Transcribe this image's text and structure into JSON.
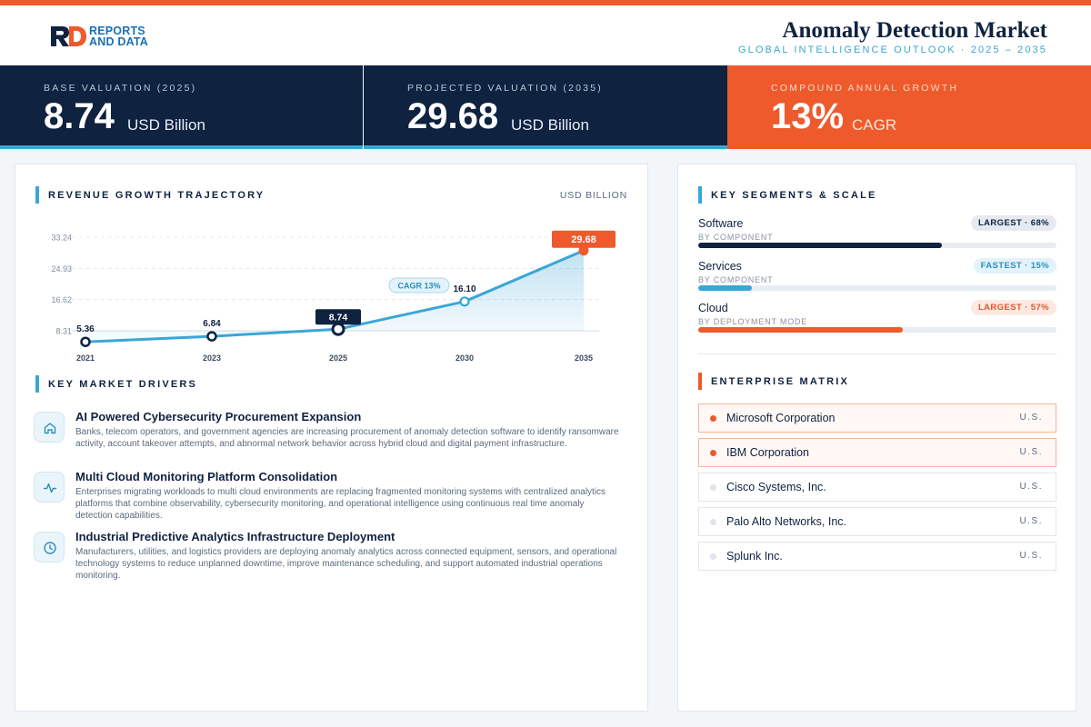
{
  "brand": {
    "logo_line1": "REPORTS",
    "logo_line2": "AND DATA",
    "colors": {
      "navy": "#0f2240",
      "orange": "#ee5a2c",
      "blue": "#3aa6d6"
    }
  },
  "header": {
    "title": "Anomaly Detection Market",
    "subtitle": "GLOBAL INTELLIGENCE OUTLOOK  ·  2025 – 2035"
  },
  "kpis": [
    {
      "label": "BASE VALUATION (2025)",
      "value": "8.74",
      "unit": "USD Billion"
    },
    {
      "label": "PROJECTED VALUATION (2035)",
      "value": "29.68",
      "unit": "USD Billion"
    },
    {
      "label": "COMPOUND ANNUAL GROWTH",
      "value": "13%",
      "unit": "CAGR"
    }
  ],
  "chart_section": {
    "title": "REVENUE GROWTH TRAJECTORY",
    "unit": "USD BILLION"
  },
  "chart_data": {
    "type": "area",
    "categories": [
      "2021",
      "2023",
      "2025",
      "2030",
      "2035"
    ],
    "values": [
      5.36,
      6.84,
      8.74,
      16.1,
      29.68
    ],
    "value_labels": [
      "5.36",
      "6.84",
      "8.74",
      "16.10",
      "29.68"
    ],
    "y_ticks": [
      "33.24",
      "24.93",
      "16.62",
      "8.31"
    ],
    "y_tick_values": [
      33.24,
      24.93,
      16.62,
      8.31
    ],
    "ylim": [
      8.31,
      33.24
    ],
    "annotation": "CAGR 13%",
    "highlight_base": "2025",
    "highlight_end": "2035",
    "grid": true
  },
  "drivers_section": {
    "title": "KEY MARKET DRIVERS"
  },
  "drivers": [
    {
      "icon": "home-icon",
      "title": "AI Powered Cybersecurity Procurement Expansion",
      "desc": "Banks, telecom operators, and government agencies are increasing procurement of anomaly detection software to identify ransomware activity, account takeover attempts, and abnormal network behavior across hybrid cloud and digital payment infrastructure."
    },
    {
      "icon": "pulse-icon",
      "title": "Multi Cloud Monitoring Platform Consolidation",
      "desc": "Enterprises migrating workloads to multi cloud environments are replacing fragmented monitoring systems with centralized analytics platforms that combine observability, cybersecurity monitoring, and operational intelligence using continuous real time anomaly detection capabilities."
    },
    {
      "icon": "clock-icon",
      "title": "Industrial Predictive Analytics Infrastructure Deployment",
      "desc": "Manufacturers, utilities, and logistics providers are deploying anomaly analytics across connected equipment, sensors, and operational technology systems to reduce unplanned downtime, improve maintenance scheduling, and support automated industrial operations monitoring."
    }
  ],
  "segments_section": {
    "title": "KEY SEGMENTS & SCALE"
  },
  "segments": [
    {
      "name": "Software",
      "sub": "BY COMPONENT",
      "badge": "LARGEST · 68%",
      "share": 0.68,
      "color": "#0f2240"
    },
    {
      "name": "Services",
      "sub": "BY COMPONENT",
      "badge": "FASTEST · 15%",
      "share": 0.15,
      "color": "#3aa6d6"
    },
    {
      "name": "Cloud",
      "sub": "BY DEPLOYMENT MODE",
      "badge": "LARGEST · 57%",
      "share": 0.57,
      "color": "#ee5a2c"
    }
  ],
  "enterprise_section": {
    "title": "ENTERPRISE MATRIX"
  },
  "enterprises": [
    {
      "name": "Microsoft Corporation",
      "country": "U.S.",
      "highlight": true
    },
    {
      "name": "IBM Corporation",
      "country": "U.S.",
      "highlight": true
    },
    {
      "name": "Cisco Systems, Inc.",
      "country": "U.S.",
      "highlight": false
    },
    {
      "name": "Palo Alto Networks, Inc.",
      "country": "U.S.",
      "highlight": false
    },
    {
      "name": "Splunk Inc.",
      "country": "U.S.",
      "highlight": false
    }
  ]
}
